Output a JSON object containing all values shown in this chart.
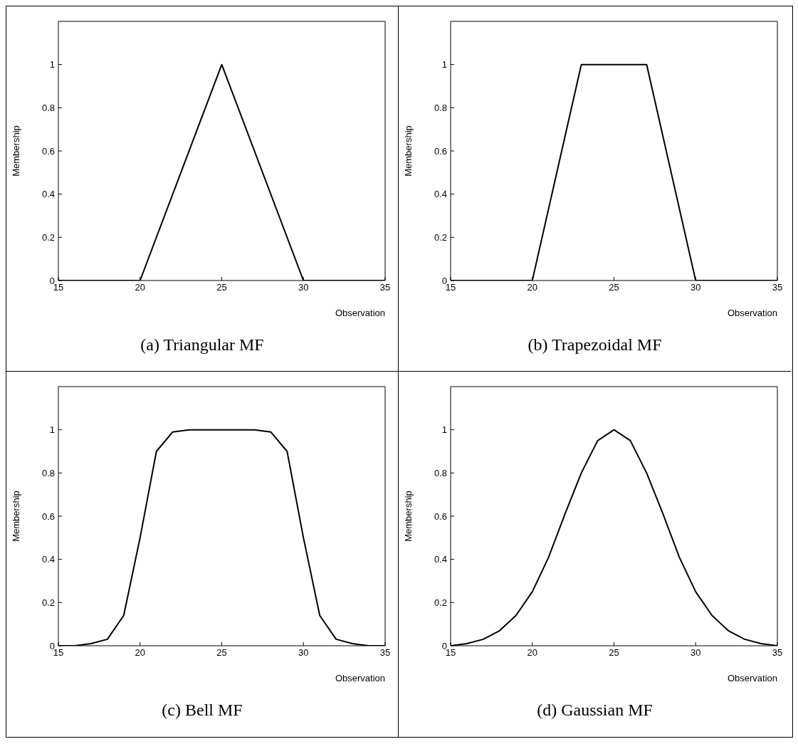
{
  "chart_data": [
    {
      "type": "line",
      "title": "(a) Triangular MF",
      "xlabel": "Observation",
      "ylabel": "Membership",
      "xlim": [
        15,
        35
      ],
      "xticks": [
        15,
        20,
        25,
        30,
        35
      ],
      "ylim": [
        0,
        1.2
      ],
      "yticks": [
        0,
        0.2,
        0.4,
        0.6,
        0.8,
        1
      ],
      "x": [
        15,
        20,
        25,
        30,
        35
      ],
      "series": [
        {
          "color": "#000000",
          "values": [
            0,
            0,
            1,
            0,
            0
          ]
        }
      ]
    },
    {
      "type": "line",
      "title": "(b) Trapezoidal MF",
      "xlabel": "Observation",
      "ylabel": "Membership",
      "xlim": [
        15,
        35
      ],
      "xticks": [
        15,
        20,
        25,
        30,
        35
      ],
      "ylim": [
        0,
        1.2
      ],
      "yticks": [
        0,
        0.2,
        0.4,
        0.6,
        0.8,
        1
      ],
      "x": [
        15,
        20,
        23,
        27,
        30,
        35
      ],
      "series": [
        {
          "color": "#000000",
          "values": [
            0,
            0,
            1,
            1,
            0,
            0
          ]
        }
      ]
    },
    {
      "type": "line",
      "title": "(c) Bell MF",
      "xlabel": "Observation",
      "ylabel": "Membership",
      "xlim": [
        15,
        35
      ],
      "xticks": [
        15,
        20,
        25,
        30,
        35
      ],
      "ylim": [
        0,
        1.2
      ],
      "yticks": [
        0,
        0.2,
        0.4,
        0.6,
        0.8,
        1
      ],
      "x": [
        15,
        16,
        17,
        18,
        19,
        20,
        21,
        22,
        23,
        24,
        25,
        26,
        27,
        28,
        29,
        30,
        31,
        32,
        33,
        34,
        35
      ],
      "series": [
        {
          "color": "#000000",
          "values": [
            0,
            0,
            0.01,
            0.03,
            0.14,
            0.5,
            0.9,
            0.99,
            1,
            1,
            1,
            1,
            1,
            0.99,
            0.9,
            0.5,
            0.14,
            0.03,
            0.01,
            0,
            0
          ]
        }
      ]
    },
    {
      "type": "line",
      "title": "(d) Gaussian MF",
      "xlabel": "Observation",
      "ylabel": "Membership",
      "xlim": [
        15,
        35
      ],
      "xticks": [
        15,
        20,
        25,
        30,
        35
      ],
      "ylim": [
        0,
        1.2
      ],
      "yticks": [
        0,
        0.2,
        0.4,
        0.6,
        0.8,
        1
      ],
      "x": [
        15,
        16,
        17,
        18,
        19,
        20,
        21,
        22,
        23,
        24,
        25,
        26,
        27,
        28,
        29,
        30,
        31,
        32,
        33,
        34,
        35
      ],
      "series": [
        {
          "color": "#000000",
          "values": [
            0,
            0.01,
            0.03,
            0.07,
            0.14,
            0.25,
            0.41,
            0.61,
            0.8,
            0.95,
            1,
            0.95,
            0.8,
            0.61,
            0.41,
            0.25,
            0.14,
            0.07,
            0.03,
            0.01,
            0
          ]
        }
      ]
    }
  ]
}
